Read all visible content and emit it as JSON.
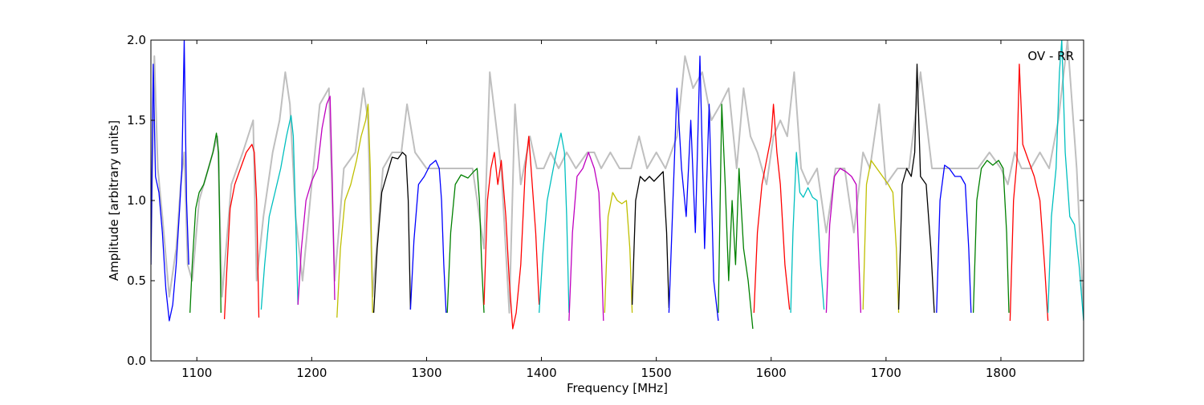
{
  "chart_data": {
    "type": "line",
    "title": "",
    "xlabel": "Frequency [MHz]",
    "ylabel": "Amplitude [arbitrary units]",
    "xlim": [
      1060,
      1872
    ],
    "ylim": [
      0.0,
      2.0
    ],
    "grid": false,
    "annotation": "OV - RR",
    "x_ticks": [
      1100,
      1200,
      1300,
      1400,
      1500,
      1600,
      1700,
      1800
    ],
    "x_tick_labels": [
      "1100",
      "1200",
      "1300",
      "1400",
      "1500",
      "1600",
      "1700",
      "1800"
    ],
    "y_ticks": [
      0.0,
      0.5,
      1.0,
      1.5,
      2.0
    ],
    "y_tick_labels": [
      "0.0",
      "0.5",
      "1.0",
      "1.5",
      "2.0"
    ],
    "background_series": {
      "color": "#bfbfbf",
      "x": [
        1060,
        1063,
        1066,
        1070,
        1076,
        1082,
        1086,
        1089,
        1092,
        1096,
        1102,
        1110,
        1118,
        1122,
        1130,
        1140,
        1149,
        1152,
        1158,
        1166,
        1172,
        1177,
        1181,
        1186,
        1192,
        1200,
        1207,
        1215,
        1220,
        1228,
        1238,
        1245,
        1249,
        1253,
        1262,
        1270,
        1278,
        1283,
        1290,
        1300,
        1310,
        1320,
        1330,
        1340,
        1350,
        1355,
        1365,
        1372,
        1377,
        1382,
        1390,
        1396,
        1402,
        1408,
        1415,
        1422,
        1430,
        1440,
        1446,
        1452,
        1460,
        1468,
        1478,
        1485,
        1492,
        1500,
        1508,
        1518,
        1525,
        1532,
        1540,
        1548,
        1556,
        1563,
        1570,
        1576,
        1582,
        1588,
        1596,
        1602,
        1608,
        1614,
        1620,
        1626,
        1632,
        1640,
        1648,
        1656,
        1664,
        1672,
        1680,
        1686,
        1694,
        1700,
        1710,
        1720,
        1730,
        1740,
        1750,
        1760,
        1770,
        1780,
        1790,
        1800,
        1806,
        1812,
        1818,
        1826,
        1834,
        1842,
        1850,
        1858,
        1866,
        1872
      ],
      "y": [
        0.6,
        1.9,
        1.2,
        0.9,
        0.4,
        0.7,
        1.1,
        1.3,
        0.6,
        0.5,
        1.0,
        1.2,
        1.4,
        0.4,
        1.1,
        1.3,
        1.5,
        0.5,
        0.9,
        1.3,
        1.5,
        1.8,
        1.6,
        0.9,
        0.5,
        1.1,
        1.6,
        1.7,
        0.5,
        1.2,
        1.3,
        1.7,
        1.5,
        0.4,
        1.2,
        1.3,
        1.3,
        1.6,
        1.3,
        1.2,
        1.2,
        1.2,
        1.2,
        1.2,
        0.7,
        1.8,
        1.2,
        0.3,
        1.6,
        1.1,
        1.4,
        1.2,
        1.2,
        1.3,
        1.2,
        1.3,
        1.2,
        1.3,
        1.3,
        1.2,
        1.3,
        1.2,
        1.2,
        1.4,
        1.2,
        1.3,
        1.2,
        1.4,
        1.9,
        1.7,
        1.8,
        1.5,
        1.6,
        1.7,
        1.2,
        1.7,
        1.4,
        1.3,
        1.1,
        1.4,
        1.5,
        1.4,
        1.8,
        1.2,
        1.1,
        1.2,
        0.8,
        1.2,
        1.2,
        0.8,
        1.3,
        1.2,
        1.6,
        1.1,
        1.2,
        1.2,
        1.8,
        1.2,
        1.2,
        1.2,
        1.2,
        1.2,
        1.3,
        1.2,
        1.1,
        1.3,
        1.2,
        1.2,
        1.3,
        1.2,
        1.5,
        2.0,
        1.2,
        0.3
      ]
    },
    "series": [
      {
        "color": "#0000ff",
        "x": [
          1060,
          1062,
          1064,
          1067,
          1070,
          1073,
          1076,
          1079,
          1082,
          1085,
          1087,
          1089,
          1091,
          1093
        ],
        "y": [
          0.6,
          1.85,
          1.15,
          1.05,
          0.8,
          0.45,
          0.25,
          0.35,
          0.6,
          0.95,
          1.2,
          2.0,
          1.0,
          0.6
        ]
      },
      {
        "color": "#008000",
        "x": [
          1094,
          1096,
          1099,
          1102,
          1106,
          1110,
          1114,
          1117,
          1119,
          1121
        ],
        "y": [
          0.3,
          0.6,
          0.95,
          1.05,
          1.1,
          1.2,
          1.3,
          1.42,
          1.3,
          0.3
        ]
      },
      {
        "color": "#ff0000",
        "x": [
          1124,
          1126,
          1129,
          1133,
          1138,
          1143,
          1148,
          1150,
          1152,
          1154
        ],
        "y": [
          0.26,
          0.55,
          0.95,
          1.1,
          1.2,
          1.3,
          1.35,
          1.3,
          1.0,
          0.27
        ]
      },
      {
        "color": "#00bfbf",
        "x": [
          1156,
          1159,
          1163,
          1168,
          1173,
          1178,
          1182,
          1184,
          1186,
          1188
        ],
        "y": [
          0.32,
          0.6,
          0.9,
          1.05,
          1.2,
          1.4,
          1.53,
          1.4,
          0.9,
          0.35
        ]
      },
      {
        "color": "#bf00bf",
        "x": [
          1188,
          1191,
          1195,
          1200,
          1205,
          1209,
          1213,
          1216,
          1218,
          1220
        ],
        "y": [
          0.35,
          0.7,
          1.0,
          1.12,
          1.2,
          1.45,
          1.6,
          1.65,
          1.1,
          0.38
        ]
      },
      {
        "color": "#bfbf00",
        "x": [
          1222,
          1225,
          1229,
          1234,
          1239,
          1243,
          1247,
          1249,
          1251,
          1253
        ],
        "y": [
          0.27,
          0.7,
          1.0,
          1.1,
          1.25,
          1.4,
          1.5,
          1.6,
          1.2,
          0.3
        ]
      },
      {
        "color": "#000000",
        "x": [
          1254,
          1257,
          1261,
          1265,
          1270,
          1275,
          1279,
          1282,
          1284,
          1286
        ],
        "y": [
          0.3,
          0.7,
          1.05,
          1.15,
          1.27,
          1.26,
          1.3,
          1.28,
          1.0,
          0.32
        ]
      },
      {
        "color": "#0000ff",
        "x": [
          1286,
          1289,
          1293,
          1298,
          1303,
          1308,
          1311,
          1313,
          1315,
          1317
        ],
        "y": [
          0.32,
          0.75,
          1.1,
          1.15,
          1.22,
          1.25,
          1.2,
          1.0,
          0.6,
          0.3
        ]
      },
      {
        "color": "#008000",
        "x": [
          1318,
          1321,
          1325,
          1330,
          1336,
          1341,
          1344,
          1346,
          1348,
          1350
        ],
        "y": [
          0.3,
          0.8,
          1.1,
          1.16,
          1.14,
          1.18,
          1.2,
          1.0,
          0.6,
          0.3
        ]
      },
      {
        "color": "#ff0000",
        "x": [
          1350,
          1353,
          1356,
          1359,
          1362,
          1365,
          1369,
          1372,
          1375,
          1378,
          1382,
          1386,
          1389,
          1392,
          1395,
          1398
        ],
        "y": [
          0.35,
          1.0,
          1.2,
          1.3,
          1.1,
          1.25,
          0.9,
          0.5,
          0.2,
          0.3,
          0.6,
          1.2,
          1.4,
          1.1,
          0.8,
          0.35
        ]
      },
      {
        "color": "#00bfbf",
        "x": [
          1398,
          1401,
          1405,
          1409,
          1413,
          1417,
          1420,
          1422,
          1424
        ],
        "y": [
          0.3,
          0.65,
          1.0,
          1.15,
          1.3,
          1.42,
          1.3,
          0.9,
          0.3
        ]
      },
      {
        "color": "#bf00bf",
        "x": [
          1424,
          1427,
          1431,
          1436,
          1441,
          1446,
          1450,
          1452,
          1454
        ],
        "y": [
          0.25,
          0.8,
          1.15,
          1.2,
          1.3,
          1.2,
          1.05,
          0.7,
          0.25
        ]
      },
      {
        "color": "#bfbf00",
        "x": [
          1455,
          1458,
          1462,
          1466,
          1470,
          1474,
          1477,
          1479
        ],
        "y": [
          0.3,
          0.9,
          1.05,
          1.0,
          0.98,
          1.0,
          0.7,
          0.3
        ]
      },
      {
        "color": "#000000",
        "x": [
          1479,
          1482,
          1486,
          1490,
          1494,
          1498,
          1502,
          1506,
          1509,
          1511
        ],
        "y": [
          0.35,
          1.0,
          1.15,
          1.12,
          1.15,
          1.12,
          1.15,
          1.18,
          0.8,
          0.33
        ]
      },
      {
        "color": "#0000ff",
        "x": [
          1511,
          1514,
          1518,
          1522,
          1526,
          1530,
          1534,
          1538,
          1542,
          1546,
          1550,
          1554
        ],
        "y": [
          0.3,
          0.9,
          1.7,
          1.2,
          0.9,
          1.5,
          0.8,
          1.9,
          0.7,
          1.6,
          0.5,
          0.25
        ]
      },
      {
        "color": "#008000",
        "x": [
          1554,
          1557,
          1560,
          1563,
          1566,
          1569,
          1572,
          1576,
          1580,
          1584
        ],
        "y": [
          0.3,
          1.6,
          1.1,
          0.5,
          1.0,
          0.6,
          1.2,
          0.7,
          0.5,
          0.2
        ]
      },
      {
        "color": "#ff0000",
        "x": [
          1585,
          1588,
          1592,
          1596,
          1600,
          1602,
          1605,
          1608,
          1612,
          1616
        ],
        "y": [
          0.3,
          0.8,
          1.1,
          1.25,
          1.4,
          1.6,
          1.3,
          1.1,
          0.6,
          0.32
        ]
      },
      {
        "color": "#00bfbf",
        "x": [
          1617,
          1619,
          1622,
          1625,
          1628,
          1632,
          1636,
          1640,
          1643,
          1646
        ],
        "y": [
          0.3,
          0.8,
          1.3,
          1.05,
          1.02,
          1.08,
          1.02,
          1.0,
          0.6,
          0.32
        ]
      },
      {
        "color": "#bf00bf",
        "x": [
          1648,
          1651,
          1655,
          1660,
          1665,
          1670,
          1674,
          1676,
          1678
        ],
        "y": [
          0.3,
          0.85,
          1.15,
          1.2,
          1.18,
          1.15,
          1.1,
          0.7,
          0.3
        ]
      },
      {
        "color": "#bfbf00",
        "x": [
          1680,
          1683,
          1687,
          1692,
          1697,
          1702,
          1706,
          1709,
          1711
        ],
        "y": [
          0.32,
          1.1,
          1.25,
          1.2,
          1.15,
          1.1,
          1.05,
          0.7,
          0.3
        ]
      },
      {
        "color": "#000000",
        "x": [
          1711,
          1714,
          1718,
          1722,
          1725,
          1727,
          1730,
          1735,
          1739,
          1742
        ],
        "y": [
          0.32,
          1.1,
          1.2,
          1.15,
          1.3,
          1.85,
          1.15,
          1.1,
          0.7,
          0.3
        ]
      },
      {
        "color": "#0000ff",
        "x": [
          1744,
          1747,
          1751,
          1755,
          1760,
          1765,
          1769,
          1772,
          1774
        ],
        "y": [
          0.3,
          1.0,
          1.22,
          1.2,
          1.15,
          1.15,
          1.1,
          0.7,
          0.3
        ]
      },
      {
        "color": "#008000",
        "x": [
          1776,
          1779,
          1783,
          1788,
          1793,
          1798,
          1802,
          1805,
          1807
        ],
        "y": [
          0.3,
          1.0,
          1.2,
          1.25,
          1.22,
          1.25,
          1.2,
          0.8,
          0.3
        ]
      },
      {
        "color": "#ff0000",
        "x": [
          1808,
          1811,
          1814,
          1816,
          1819,
          1824,
          1829,
          1834,
          1838,
          1841
        ],
        "y": [
          0.25,
          1.0,
          1.25,
          1.85,
          1.35,
          1.25,
          1.15,
          1.0,
          0.6,
          0.25
        ]
      },
      {
        "color": "#00bfbf",
        "x": [
          1841,
          1844,
          1848,
          1851,
          1853,
          1856,
          1860,
          1864,
          1868,
          1872
        ],
        "y": [
          0.3,
          0.9,
          1.2,
          1.8,
          2.0,
          1.3,
          0.9,
          0.85,
          0.6,
          0.25
        ]
      }
    ]
  }
}
